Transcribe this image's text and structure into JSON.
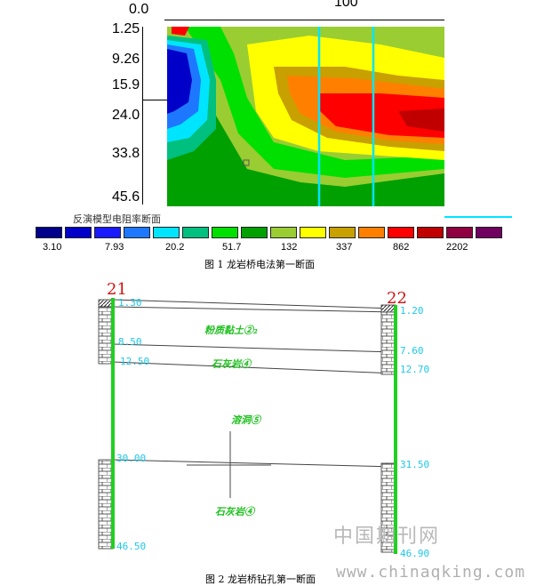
{
  "figure1": {
    "top_ticks": [
      "0.0",
      "100"
    ],
    "depth_ticks": [
      "1.25",
      "9.26",
      "15.9",
      "24.0",
      "33.8",
      "45.6"
    ],
    "legend_title": "反演模型电阻率断面",
    "legend_values": [
      "3.10",
      "7.93",
      "20.2",
      "51.7",
      "132",
      "337",
      "862",
      "2202"
    ],
    "legend_colors": [
      "#00008b",
      "#0000c8",
      "#1a1aff",
      "#1e78ff",
      "#00e5ff",
      "#00c080",
      "#00e000",
      "#00a000",
      "#9acd32",
      "#ffff00",
      "#c8a000",
      "#ff8000",
      "#ff0000",
      "#c00000",
      "#900040",
      "#700060"
    ],
    "caption": "图 1    龙岩桥电法第一断面"
  },
  "figure2": {
    "borehole_left_id": "21",
    "borehole_right_id": "22",
    "left_depths": [
      "1.30",
      "8.50",
      "12.50",
      "30.00",
      "46.50"
    ],
    "right_depths": [
      "1.20",
      "7.60",
      "12.70",
      "31.50",
      "46.90"
    ],
    "layer_labels": [
      "粉质黏土②₂",
      "石灰岩④",
      "溶洞⑤",
      "石灰岩④"
    ],
    "caption": "图 2    龙岩桥钻孔第一断面"
  },
  "watermark": {
    "cn": "中国期刊网",
    "url": "www.chinaqking.com"
  }
}
